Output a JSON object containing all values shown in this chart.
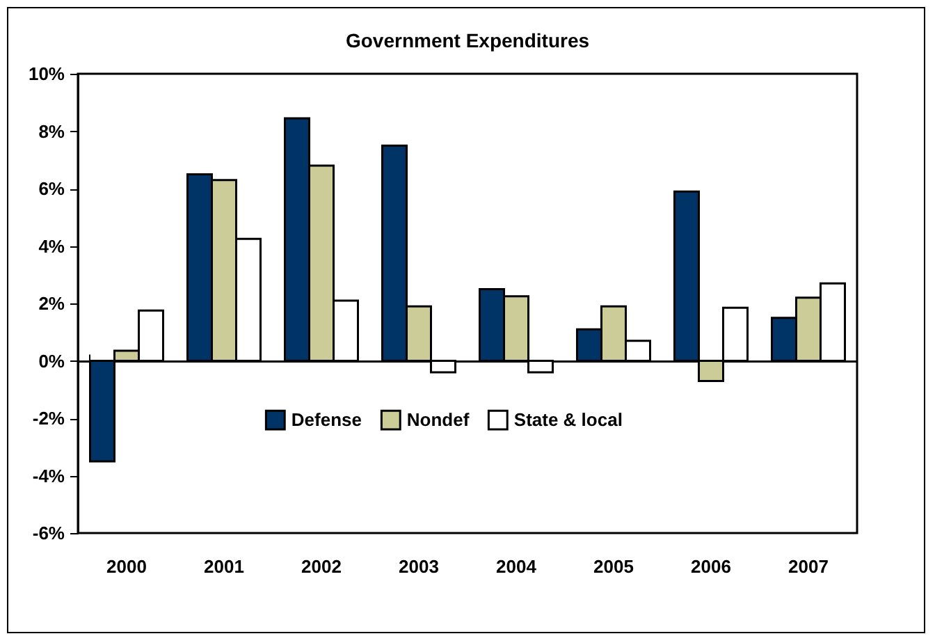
{
  "chart_data": {
    "type": "bar",
    "title": "Government Expenditures",
    "categories": [
      "2000",
      "2001",
      "2002",
      "2003",
      "2004",
      "2005",
      "2006",
      "2007"
    ],
    "series": [
      {
        "name": "Defense",
        "color": "#003366",
        "values": [
          -3.5,
          6.5,
          8.45,
          7.5,
          2.5,
          1.1,
          5.9,
          1.5
        ]
      },
      {
        "name": "Nondef",
        "color": "#cccc99",
        "values": [
          0.35,
          6.3,
          6.8,
          1.9,
          2.25,
          1.9,
          -0.7,
          2.2
        ]
      },
      {
        "name": "State & local",
        "color": "#ffffff",
        "values": [
          1.75,
          4.25,
          2.1,
          -0.4,
          -0.4,
          0.7,
          1.85,
          2.7
        ]
      }
    ],
    "ylim": [
      -6,
      10
    ],
    "yticks": [
      {
        "value": -6,
        "label": "-6%"
      },
      {
        "value": -4,
        "label": "-4%"
      },
      {
        "value": -2,
        "label": "-2%"
      },
      {
        "value": 0,
        "label": "0%"
      },
      {
        "value": 2,
        "label": "2%"
      },
      {
        "value": 4,
        "label": "4%"
      },
      {
        "value": 6,
        "label": "6%"
      },
      {
        "value": 8,
        "label": "8%"
      },
      {
        "value": 10,
        "label": "10%"
      }
    ],
    "legend": "bottom"
  }
}
